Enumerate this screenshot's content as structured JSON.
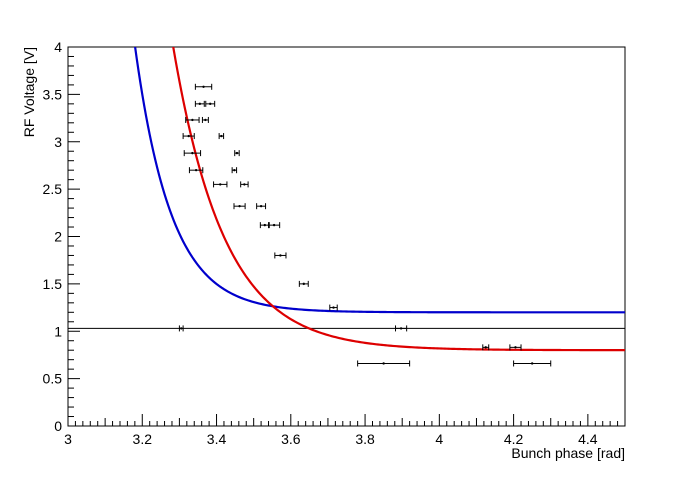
{
  "chart_data": {
    "type": "scatter",
    "xlabel": "Bunch phase [rad]",
    "ylabel": "RF Voltage [V]",
    "xlim": [
      3.0,
      4.5
    ],
    "ylim": [
      0,
      4
    ],
    "grid": false,
    "x_ticks": [
      "3",
      "3.2",
      "3.4",
      "3.6",
      "3.8",
      "4",
      "4.2",
      "4.4"
    ],
    "y_ticks": [
      "0",
      "0.5",
      "1",
      "1.5",
      "2",
      "2.5",
      "3",
      "3.5",
      "4"
    ],
    "points": [
      {
        "x": 3.365,
        "y": 3.58,
        "xerr": 0.022
      },
      {
        "x": 3.383,
        "y": 3.4,
        "xerr": 0.012
      },
      {
        "x": 3.355,
        "y": 3.4,
        "xerr": 0.012
      },
      {
        "x": 3.37,
        "y": 3.23,
        "xerr": 0.008
      },
      {
        "x": 3.335,
        "y": 3.23,
        "xerr": 0.018
      },
      {
        "x": 3.413,
        "y": 3.06,
        "xerr": 0.006
      },
      {
        "x": 3.325,
        "y": 3.06,
        "xerr": 0.015
      },
      {
        "x": 3.455,
        "y": 2.88,
        "xerr": 0.006
      },
      {
        "x": 3.335,
        "y": 2.88,
        "xerr": 0.022
      },
      {
        "x": 3.448,
        "y": 2.7,
        "xerr": 0.006
      },
      {
        "x": 3.345,
        "y": 2.7,
        "xerr": 0.018
      },
      {
        "x": 3.475,
        "y": 2.55,
        "xerr": 0.01
      },
      {
        "x": 3.41,
        "y": 2.55,
        "xerr": 0.018
      },
      {
        "x": 3.52,
        "y": 2.32,
        "xerr": 0.012
      },
      {
        "x": 3.462,
        "y": 2.32,
        "xerr": 0.015
      },
      {
        "x": 3.555,
        "y": 2.12,
        "xerr": 0.015
      },
      {
        "x": 3.53,
        "y": 2.12,
        "xerr": 0.012
      },
      {
        "x": 3.572,
        "y": 1.8,
        "xerr": 0.015
      },
      {
        "x": 3.635,
        "y": 1.5,
        "xerr": 0.012
      },
      {
        "x": 3.715,
        "y": 1.25,
        "xerr": 0.01
      },
      {
        "x": 3.305,
        "y": 1.03,
        "xerr": 0.005
      },
      {
        "x": 3.897,
        "y": 1.03,
        "xerr": 0.015
      },
      {
        "x": 3.85,
        "y": 0.66,
        "xerr": 0.07
      },
      {
        "x": 4.125,
        "y": 0.83,
        "xerr": 0.008
      },
      {
        "x": 4.205,
        "y": 0.83,
        "xerr": 0.015
      },
      {
        "x": 4.25,
        "y": 0.66,
        "xerr": 0.05
      }
    ],
    "horizontal_line": {
      "y": 1.03
    },
    "series": [
      {
        "color": "#0000cc",
        "model": {
          "a": 1.2,
          "b": 2.3,
          "k": 10.2,
          "x0": 3.2
        }
      },
      {
        "color": "#dd0000",
        "model": {
          "a": 0.8,
          "b": 3.28,
          "k": 7.2,
          "x0": 3.28
        }
      }
    ]
  }
}
